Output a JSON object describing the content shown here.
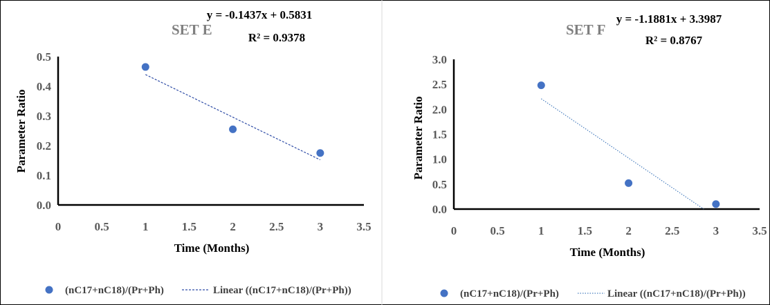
{
  "chart_data": [
    {
      "type": "scatter",
      "title": "SET E",
      "xlabel": "Time (Months)",
      "ylabel": "Parameter Ratio",
      "xlim": [
        0,
        3.5
      ],
      "ylim": [
        0,
        0.5
      ],
      "x_ticks": [
        "0",
        "0.5",
        "1",
        "1.5",
        "2",
        "2.5",
        "3",
        "3.5"
      ],
      "y_ticks": [
        "0.0",
        "0.1",
        "0.2",
        "0.3",
        "0.4",
        "0.5"
      ],
      "series": [
        {
          "name": "(nC17+nC18)/(Pr+Ph)",
          "x": [
            1,
            2,
            3
          ],
          "y": [
            0.465,
            0.255,
            0.175
          ],
          "color": "#4472c4"
        }
      ],
      "trendline": {
        "name": "Linear ((nC17+nC18)/(Pr+Ph))",
        "style": "dashed",
        "slope": -0.1437,
        "intercept": 0.5831,
        "x_range": [
          1,
          3
        ],
        "equation": "y = -0.1437x + 0.5831",
        "r_squared": "R² = 0.9378",
        "color": "#2e4ca6"
      },
      "grid": false,
      "legend_position": "bottom"
    },
    {
      "type": "scatter",
      "title": "SET F",
      "xlabel": "Time (Months)",
      "ylabel": "Parameter Ratio",
      "xlim": [
        0,
        3.5
      ],
      "ylim": [
        0,
        3.0
      ],
      "x_ticks": [
        "0",
        "0.5",
        "1",
        "1.5",
        "2",
        "2.5",
        "3",
        "3.5"
      ],
      "y_ticks": [
        "0.0",
        "0.5",
        "1.0",
        "1.5",
        "2.0",
        "2.5",
        "3.0"
      ],
      "series": [
        {
          "name": "(nC17+nC18)/(Pr+Ph)",
          "x": [
            1,
            2,
            3
          ],
          "y": [
            2.48,
            0.52,
            0.1
          ],
          "color": "#4472c4"
        }
      ],
      "trendline": {
        "name": "Linear ((nC17+nC18)/(Pr+Ph))",
        "style": "dotted",
        "slope": -1.1881,
        "intercept": 3.3987,
        "x_range": [
          1,
          2.86
        ],
        "equation": "y = -1.1881x + 3.3987",
        "r_squared": "R² = 0.8767",
        "color": "#4a7fbf"
      },
      "grid": false,
      "legend_position": "bottom"
    }
  ]
}
